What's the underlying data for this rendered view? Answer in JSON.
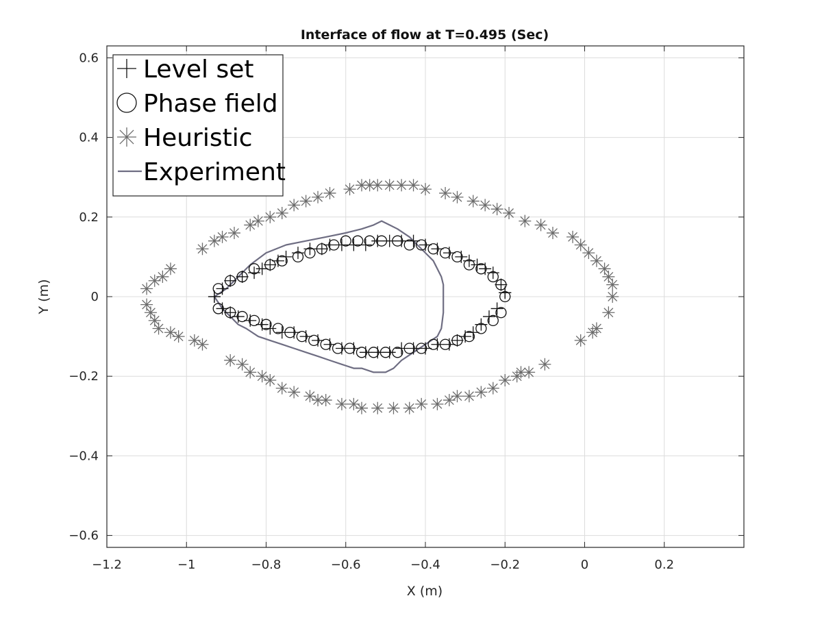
{
  "chart_data": {
    "type": "scatter",
    "title": "Interface of flow at T=0.495 (Sec)",
    "xlabel": "X (m)",
    "ylabel": "Y (m)",
    "xlim": [
      -1.2,
      0.4
    ],
    "ylim": [
      -0.63,
      0.63
    ],
    "x_ticks": [
      -1.2,
      -1,
      -0.8,
      -0.6,
      -0.4,
      -0.2,
      0,
      0.2
    ],
    "x_tick_labels": [
      "−1.2",
      "−1",
      "−0.8",
      "−0.6",
      "−0.4",
      "−0.2",
      "0",
      "0.2"
    ],
    "y_ticks": [
      0.6,
      0.4,
      0.2,
      0,
      -0.2,
      -0.4,
      -0.6
    ],
    "y_tick_labels": [
      "0.6",
      "0.4",
      "0.2",
      "0",
      "−0.2",
      "−0.4",
      "−0.6"
    ],
    "grid": true,
    "legend_position": "top-left",
    "series": [
      {
        "name": "Level set",
        "marker": "plus",
        "color": "#111111",
        "x": [
          -0.93,
          -0.91,
          -0.89,
          -0.86,
          -0.83,
          -0.81,
          -0.79,
          -0.77,
          -0.75,
          -0.72,
          -0.69,
          -0.66,
          -0.64,
          -0.61,
          -0.58,
          -0.55,
          -0.52,
          -0.49,
          -0.46,
          -0.43,
          -0.4,
          -0.37,
          -0.34,
          -0.31,
          -0.29,
          -0.27,
          -0.25,
          -0.23,
          -0.21,
          -0.2,
          -0.2,
          -0.22,
          -0.24,
          -0.26,
          -0.28,
          -0.3,
          -0.32,
          -0.34,
          -0.37,
          -0.4,
          -0.43,
          -0.46,
          -0.49,
          -0.52,
          -0.55,
          -0.58,
          -0.61,
          -0.64,
          -0.67,
          -0.7,
          -0.73,
          -0.76,
          -0.79,
          -0.81,
          -0.84,
          -0.87,
          -0.89,
          -0.91,
          -0.93
        ],
        "y": [
          0.0,
          0.02,
          0.04,
          0.05,
          0.06,
          0.07,
          0.08,
          0.09,
          0.1,
          0.11,
          0.12,
          0.12,
          0.13,
          0.13,
          0.13,
          0.13,
          0.14,
          0.14,
          0.14,
          0.14,
          0.13,
          0.12,
          0.11,
          0.1,
          0.09,
          0.08,
          0.07,
          0.06,
          0.03,
          0.01,
          0.01,
          -0.03,
          -0.05,
          -0.07,
          -0.09,
          -0.1,
          -0.11,
          -0.12,
          -0.12,
          -0.13,
          -0.13,
          -0.13,
          -0.14,
          -0.14,
          -0.14,
          -0.13,
          -0.13,
          -0.12,
          -0.11,
          -0.1,
          -0.09,
          -0.09,
          -0.08,
          -0.07,
          -0.06,
          -0.05,
          -0.04,
          -0.03,
          0.0
        ]
      },
      {
        "name": "Phase field",
        "marker": "circle",
        "color": "#111111",
        "x": [
          -0.92,
          -0.89,
          -0.86,
          -0.83,
          -0.79,
          -0.76,
          -0.72,
          -0.69,
          -0.66,
          -0.63,
          -0.6,
          -0.57,
          -0.54,
          -0.51,
          -0.47,
          -0.44,
          -0.41,
          -0.38,
          -0.35,
          -0.32,
          -0.29,
          -0.26,
          -0.23,
          -0.21,
          -0.2,
          -0.21,
          -0.23,
          -0.26,
          -0.29,
          -0.32,
          -0.35,
          -0.38,
          -0.41,
          -0.44,
          -0.47,
          -0.5,
          -0.53,
          -0.56,
          -0.59,
          -0.62,
          -0.65,
          -0.68,
          -0.71,
          -0.74,
          -0.77,
          -0.8,
          -0.83,
          -0.86,
          -0.89,
          -0.92
        ],
        "y": [
          0.02,
          0.04,
          0.05,
          0.07,
          0.08,
          0.09,
          0.1,
          0.11,
          0.12,
          0.13,
          0.14,
          0.14,
          0.14,
          0.14,
          0.14,
          0.13,
          0.13,
          0.12,
          0.11,
          0.1,
          0.08,
          0.07,
          0.05,
          0.03,
          0.0,
          -0.04,
          -0.06,
          -0.08,
          -0.1,
          -0.11,
          -0.12,
          -0.12,
          -0.13,
          -0.13,
          -0.14,
          -0.14,
          -0.14,
          -0.14,
          -0.13,
          -0.13,
          -0.12,
          -0.11,
          -0.1,
          -0.09,
          -0.08,
          -0.07,
          -0.06,
          -0.05,
          -0.04,
          -0.03
        ]
      },
      {
        "name": "Heuristic",
        "marker": "asterisk",
        "color": "#6b6b6b",
        "x": [
          -1.1,
          -1.08,
          -1.06,
          -1.04,
          -0.96,
          -0.93,
          -0.91,
          -0.88,
          -0.84,
          -0.82,
          -0.79,
          -0.76,
          -0.73,
          -0.7,
          -0.67,
          -0.64,
          -0.59,
          -0.56,
          -0.54,
          -0.52,
          -0.49,
          -0.46,
          -0.43,
          -0.4,
          -0.35,
          -0.32,
          -0.28,
          -0.25,
          -0.22,
          -0.19,
          -0.15,
          -0.11,
          -0.08,
          -0.03,
          -0.01,
          0.01,
          0.03,
          0.05,
          0.06,
          0.07,
          0.07,
          0.06,
          0.03,
          0.02,
          -0.01,
          -0.1,
          -0.14,
          -0.16,
          -0.17,
          -0.2,
          -0.23,
          -0.26,
          -0.29,
          -0.32,
          -0.34,
          -0.37,
          -0.41,
          -0.44,
          -0.48,
          -0.52,
          -0.56,
          -0.58,
          -0.61,
          -0.65,
          -0.67,
          -0.69,
          -0.73,
          -0.76,
          -0.79,
          -0.81,
          -0.84,
          -0.86,
          -0.89,
          -0.96,
          -0.98,
          -1.02,
          -1.04,
          -1.07,
          -1.08,
          -1.09,
          -1.1
        ],
        "y": [
          0.02,
          0.04,
          0.05,
          0.07,
          0.12,
          0.14,
          0.15,
          0.16,
          0.18,
          0.19,
          0.2,
          0.21,
          0.23,
          0.24,
          0.25,
          0.26,
          0.27,
          0.28,
          0.28,
          0.28,
          0.28,
          0.28,
          0.28,
          0.27,
          0.26,
          0.25,
          0.24,
          0.23,
          0.22,
          0.21,
          0.19,
          0.18,
          0.16,
          0.15,
          0.13,
          0.11,
          0.09,
          0.07,
          0.05,
          0.03,
          0.0,
          -0.04,
          -0.08,
          -0.09,
          -0.11,
          -0.17,
          -0.19,
          -0.19,
          -0.2,
          -0.21,
          -0.23,
          -0.24,
          -0.25,
          -0.25,
          -0.26,
          -0.27,
          -0.27,
          -0.28,
          -0.28,
          -0.28,
          -0.28,
          -0.27,
          -0.27,
          -0.26,
          -0.26,
          -0.25,
          -0.24,
          -0.23,
          -0.21,
          -0.2,
          -0.19,
          -0.17,
          -0.16,
          -0.12,
          -0.11,
          -0.1,
          -0.09,
          -0.08,
          -0.06,
          -0.04,
          -0.02
        ]
      },
      {
        "name": "Experiment",
        "marker": "line",
        "color": "#6e6d82",
        "x": [
          -0.93,
          -0.9,
          -0.88,
          -0.86,
          -0.84,
          -0.8,
          -0.75,
          -0.7,
          -0.65,
          -0.6,
          -0.56,
          -0.53,
          -0.51,
          -0.49,
          -0.47,
          -0.44,
          -0.42,
          -0.4,
          -0.38,
          -0.37,
          -0.36,
          -0.355,
          -0.355,
          -0.355,
          -0.36,
          -0.37,
          -0.4,
          -0.43,
          -0.46,
          -0.48,
          -0.5,
          -0.53,
          -0.56,
          -0.58,
          -0.61,
          -0.64,
          -0.67,
          -0.7,
          -0.73,
          -0.76,
          -0.79,
          -0.82,
          -0.85,
          -0.87,
          -0.89,
          -0.91,
          -0.93
        ],
        "y": [
          0.0,
          0.02,
          0.04,
          0.06,
          0.08,
          0.11,
          0.13,
          0.14,
          0.15,
          0.16,
          0.17,
          0.18,
          0.19,
          0.18,
          0.17,
          0.15,
          0.13,
          0.11,
          0.09,
          0.07,
          0.05,
          0.03,
          0.0,
          -0.04,
          -0.08,
          -0.1,
          -0.12,
          -0.14,
          -0.16,
          -0.18,
          -0.19,
          -0.19,
          -0.18,
          -0.18,
          -0.17,
          -0.16,
          -0.15,
          -0.14,
          -0.13,
          -0.12,
          -0.11,
          -0.1,
          -0.08,
          -0.07,
          -0.05,
          -0.03,
          0.0
        ]
      }
    ]
  }
}
